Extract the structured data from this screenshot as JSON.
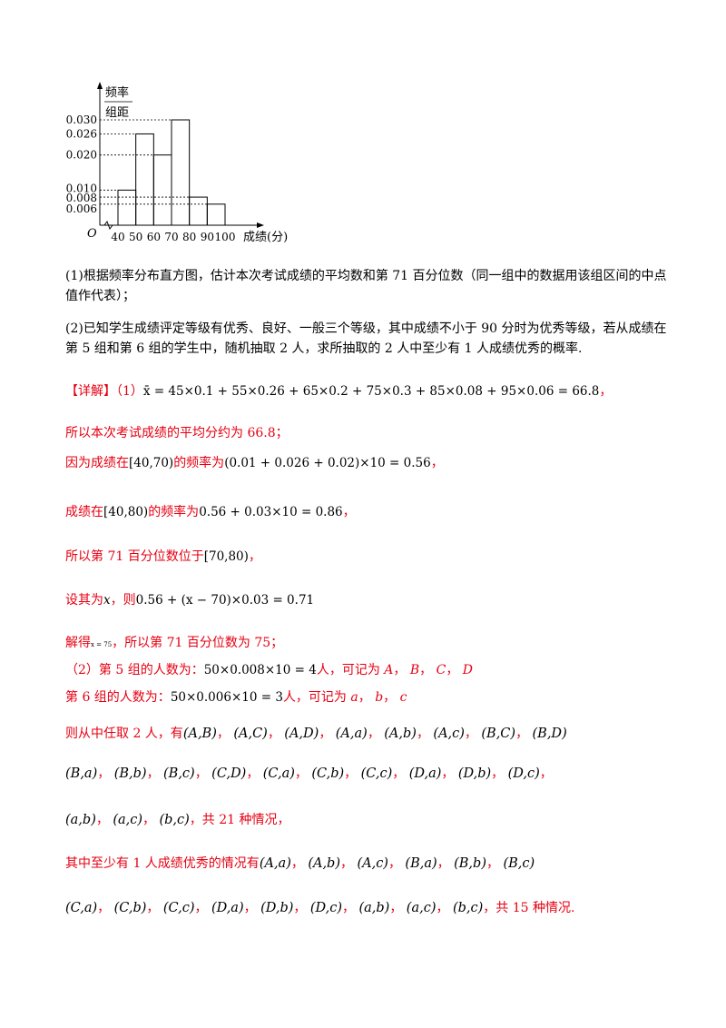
{
  "chart_data": {
    "type": "bar",
    "ylabel_top": "频率",
    "ylabel_bottom": "组距",
    "origin_label": "O",
    "xlabel": "成绩(分)",
    "x_ticks": [
      "40",
      "50",
      "60",
      "70",
      "80",
      "90",
      "100"
    ],
    "bins": [
      [
        40,
        50
      ],
      [
        50,
        60
      ],
      [
        60,
        70
      ],
      [
        70,
        80
      ],
      [
        80,
        90
      ],
      [
        90,
        100
      ]
    ],
    "values": [
      0.01,
      0.026,
      0.02,
      0.03,
      0.008,
      0.006
    ],
    "y_ticks": [
      "0.030",
      "0.026",
      "0.020",
      "0.010",
      "0.008",
      "0.006"
    ],
    "ylim": [
      0,
      0.03
    ]
  },
  "question": {
    "part1": "(1)根据频率分布直方图，估计本次考试成绩的平均数和第 71 百分位数（同一组中的数据用该组区间的中点值作代表）；",
    "part2": "(2)已知学生成绩评定等级有优秀、良好、一般三个等级，其中成绩不小于 90 分时为优秀等级，若从成绩在第 5 组和第 6 组的学生中，随机抽取 2 人，求所抽取的 2 人中至少有 1 人成绩优秀的概率."
  },
  "solution": {
    "tag": "【详解】",
    "part1_label": "（1）",
    "mean_formula": "x̄ = 45×0.1 + 55×0.26 + 65×0.2 + 75×0.3 + 85×0.08 + 95×0.06 = 66.8",
    "comma": "，",
    "line2": "所以本次考试成绩的平均分约为 66.8；",
    "line3_pre": "因为成绩在",
    "line3_interval": "[40,70)",
    "line3_mid": "的频率为",
    "line3_formula": "(0.01 + 0.026 + 0.02)×10 = 0.56",
    "line4_pre": "成绩在",
    "line4_interval": "[40,80)",
    "line4_mid": "的频率为",
    "line4_formula": "0.56 + 0.03×10 = 0.86",
    "line5_pre": "所以第 71 百分位数位于",
    "line5_interval": "[70,80)",
    "line6_pre": "设其为",
    "line6_var": "x",
    "line6_mid": "，则",
    "line6_formula": "0.56 + (x − 70)×0.03 = 0.71",
    "line7_pre": "解得",
    "line7_small": "x = 75",
    "line7_post": "，所以第 71 百分位数为 75；",
    "line8_pre": "（2）第 5 组的人数为：",
    "line8_formula": "50×0.008×10 = 4",
    "line8_post": "人，可记为",
    "line8_letters": [
      "A",
      "B",
      "C",
      "D"
    ],
    "line9_pre": "第 6 组的人数为：",
    "line9_formula": "50×0.006×10 = 3",
    "line9_post": "人，可记为",
    "line9_letters": [
      "a",
      "b",
      "c"
    ],
    "line10_pre": "则从中任取 2 人，有",
    "all_pairs_row1": [
      "(A,B)",
      "(A,C)",
      "(A,D)",
      "(A,a)",
      "(A,b)",
      "(A,c)",
      "(B,C)",
      "(B,D)"
    ],
    "all_pairs_row2": [
      "(B,a)",
      "(B,b)",
      "(B,c)",
      "(C,D)",
      "(C,a)",
      "(C,b)",
      "(C,c)",
      "(D,a)",
      "(D,b)",
      "(D,c)"
    ],
    "all_pairs_row3": [
      "(a,b)",
      "(a,c)",
      "(b,c)"
    ],
    "total_text": "，共 21 种情况，",
    "line14_pre": "其中至少有 1 人成绩优秀的情况有",
    "good_pairs_row1": [
      "(A,a)",
      "(A,b)",
      "(A,c)",
      "(B,a)",
      "(B,b)",
      "(B,c)"
    ],
    "good_pairs_row2": [
      "(C,a)",
      "(C,b)",
      "(C,c)",
      "(D,a)",
      "(D,b)",
      "(D,c)",
      "(a,b)",
      "(a,c)",
      "(b,c)"
    ],
    "good_total_text": "，共 15 种情况."
  }
}
